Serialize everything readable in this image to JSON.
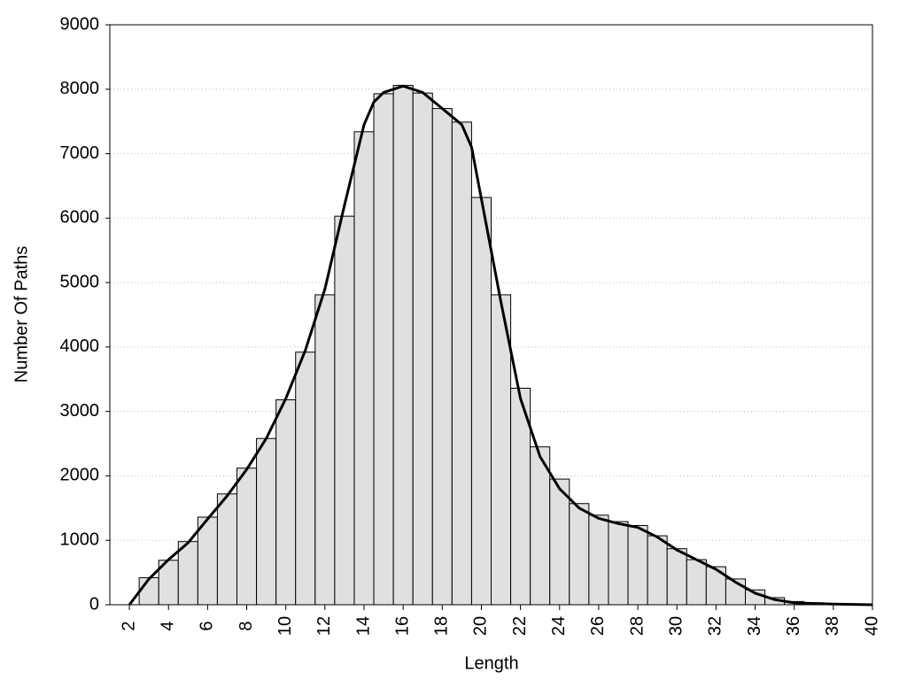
{
  "chart_data": {
    "type": "histogram",
    "x_label": "Length",
    "y_label": "Number Of Paths",
    "bins": [
      2.5,
      3.5,
      4.5,
      5.5,
      6.5,
      7.5,
      8.5,
      9.5,
      10.5,
      11.5,
      12.5,
      13.5,
      14.5,
      15.5,
      16.5,
      17.5,
      18.5,
      19.5,
      20.5,
      21.5,
      22.5,
      23.5,
      24.5,
      25.5,
      26.5,
      27.5,
      28.5,
      29.5,
      30.5,
      31.5,
      32.5,
      33.5,
      34.5,
      35.5,
      36.5,
      37.5,
      38.5,
      39.5
    ],
    "values": [
      420,
      690,
      980,
      1360,
      1720,
      2120,
      2580,
      3180,
      3920,
      4810,
      6030,
      7340,
      7930,
      8060,
      7940,
      7700,
      7490,
      6320,
      4810,
      3360,
      2450,
      1950,
      1570,
      1390,
      1290,
      1230,
      1070,
      870,
      700,
      590,
      400,
      230,
      110,
      50,
      30,
      20,
      10
    ],
    "color": "#e0e0e0",
    "curve": {
      "x": [
        2,
        3,
        4,
        5,
        6,
        7,
        8,
        9,
        10,
        11,
        12,
        13,
        14,
        14.5,
        15,
        16,
        17,
        18,
        19,
        19.5,
        20,
        21,
        22,
        23,
        24,
        25,
        26,
        27,
        28,
        29,
        30,
        31,
        32,
        33,
        34,
        35,
        36,
        38,
        40
      ],
      "values": [
        0,
        400,
        700,
        960,
        1330,
        1690,
        2100,
        2580,
        3200,
        3950,
        4900,
        6200,
        7450,
        7800,
        7950,
        8050,
        7950,
        7700,
        7450,
        7100,
        6300,
        4700,
        3200,
        2300,
        1800,
        1500,
        1340,
        1260,
        1200,
        1050,
        850,
        700,
        550,
        350,
        180,
        80,
        30,
        10,
        0
      ],
      "color": "#000000"
    },
    "xlim": [
      1,
      40
    ],
    "xticks": [
      2,
      4,
      6,
      8,
      10,
      12,
      14,
      16,
      18,
      20,
      22,
      24,
      26,
      28,
      30,
      32,
      34,
      36,
      38,
      40
    ],
    "ylim": [
      0,
      9000
    ],
    "yticks": [
      0,
      1000,
      2000,
      3000,
      4000,
      5000,
      6000,
      7000,
      8000,
      9000
    ],
    "grid": true
  }
}
